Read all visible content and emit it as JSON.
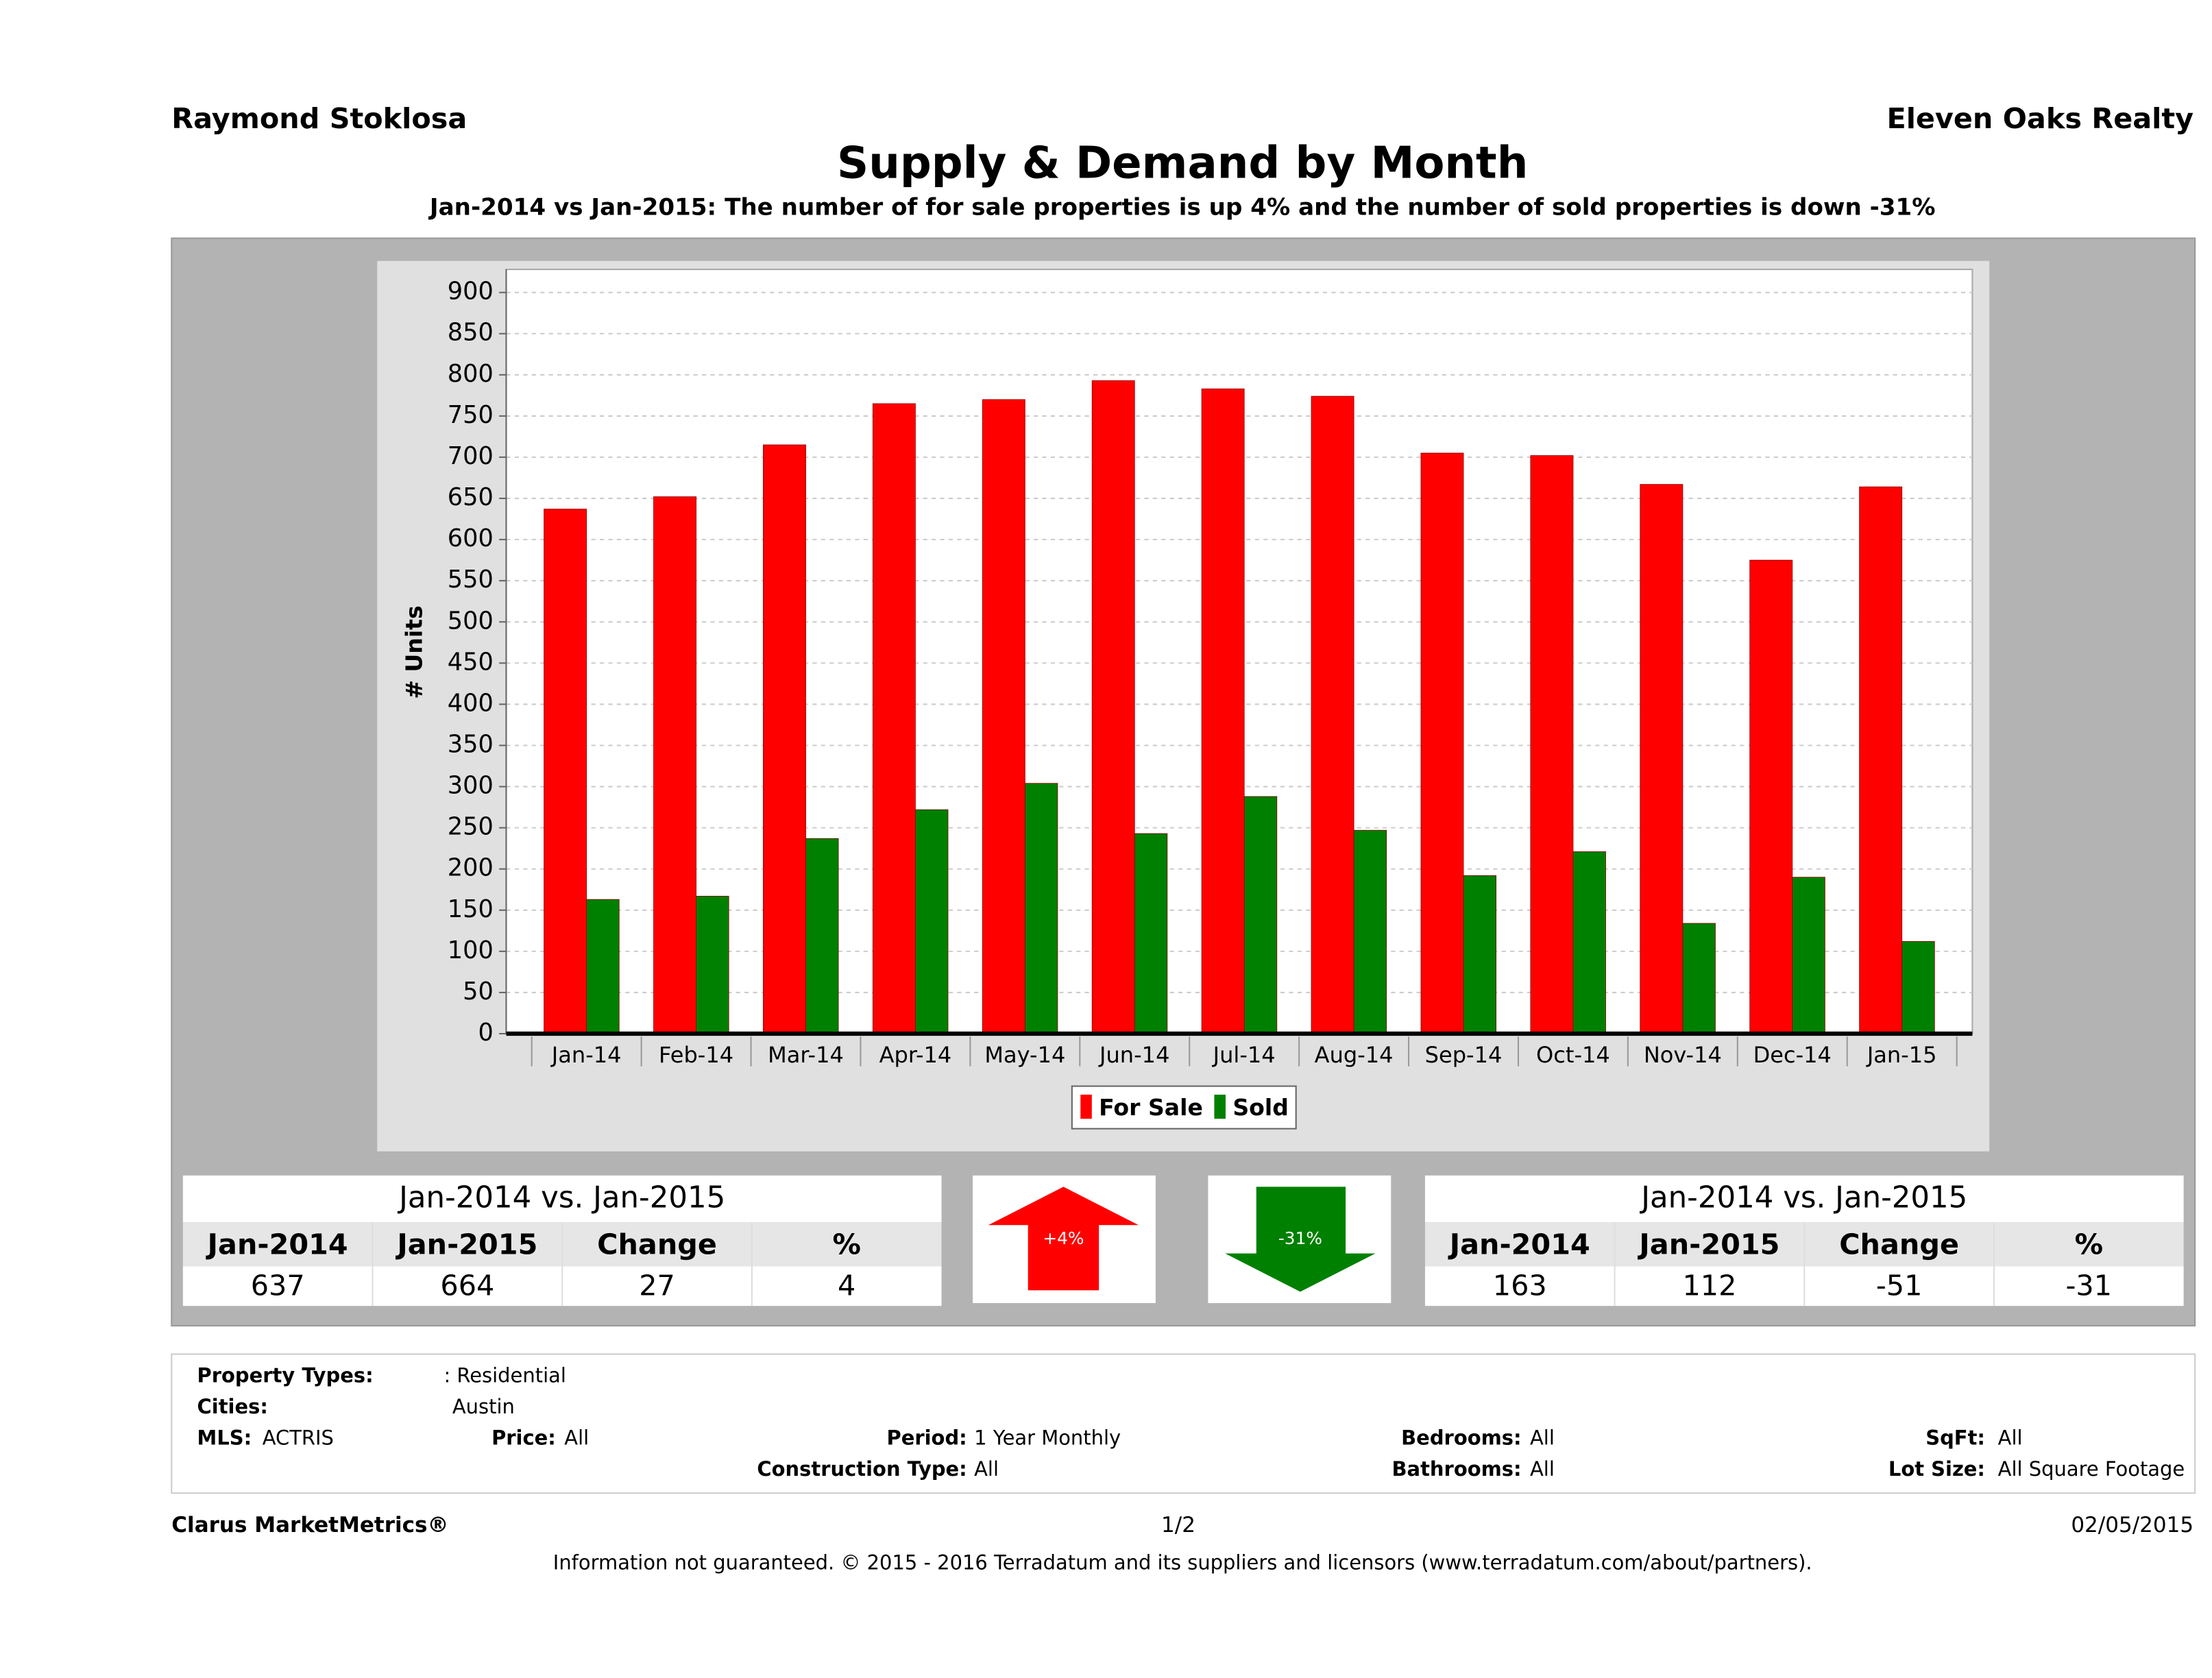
{
  "header": {
    "left": "Raymond Stoklosa",
    "right": "Eleven Oaks Realty"
  },
  "chart_data": {
    "type": "bar",
    "title": "Supply & Demand by Month",
    "subtitle": "Jan-2014 vs Jan-2015: The number of for sale properties is up 4% and the number of sold properties is down -31%",
    "y_label": "# Units",
    "categories": [
      "Jan-14",
      "Feb-14",
      "Mar-14",
      "Apr-14",
      "May-14",
      "Jun-14",
      "Jul-14",
      "Aug-14",
      "Sep-14",
      "Oct-14",
      "Nov-14",
      "Dec-14",
      "Jan-15"
    ],
    "series": [
      {
        "name": "For Sale",
        "color": "#ff0000",
        "values": [
          637,
          652,
          715,
          765,
          770,
          793,
          783,
          774,
          705,
          702,
          667,
          575,
          664
        ]
      },
      {
        "name": "Sold",
        "color": "#008000",
        "values": [
          163,
          167,
          237,
          272,
          304,
          243,
          288,
          247,
          192,
          221,
          134,
          190,
          112
        ]
      }
    ],
    "ylim": [
      0,
      928
    ],
    "yticks": [
      0,
      50,
      100,
      150,
      200,
      250,
      300,
      350,
      400,
      450,
      500,
      550,
      600,
      650,
      700,
      750,
      800,
      850,
      900
    ],
    "grid": true,
    "legend": "bottom"
  },
  "summary": [
    {
      "title": "Jan-2014 vs. Jan-2015",
      "columns": [
        "Jan-2014",
        "Jan-2015",
        "Change",
        "%"
      ],
      "values": [
        637,
        664,
        27,
        4
      ],
      "arrow": "+4%"
    },
    {
      "title": "Jan-2014 vs. Jan-2015",
      "columns": [
        "Jan-2014",
        "Jan-2015",
        "Change",
        "%"
      ],
      "values": [
        163,
        112,
        -51,
        -31
      ],
      "arrow": "-31%"
    }
  ],
  "filters": [
    {
      "label": "Property Types:",
      "value": ": Residential"
    },
    {
      "label": "Cities:",
      "value": "Austin"
    },
    {
      "label": "MLS:",
      "value": "ACTRIS"
    },
    {
      "label": "Price:",
      "value": "All"
    },
    {
      "label": "Period:",
      "value": "1 Year Monthly"
    },
    {
      "label": "Bedrooms:",
      "value": "All"
    },
    {
      "label": "SqFt:",
      "value": "All"
    },
    {
      "label": "Construction Type:",
      "value": "All"
    },
    {
      "label": "Bathrooms:",
      "value": "All"
    },
    {
      "label": "Lot Size:",
      "value": "All Square Footage"
    }
  ],
  "footer": {
    "left": "Clarus MarketMetrics®",
    "center": "1/2",
    "right": "02/05/2015",
    "disclaimer": "Information not guaranteed. © 2015 - 2016 Terradatum and its suppliers and licensors (www.terradatum.com/about/partners)."
  }
}
